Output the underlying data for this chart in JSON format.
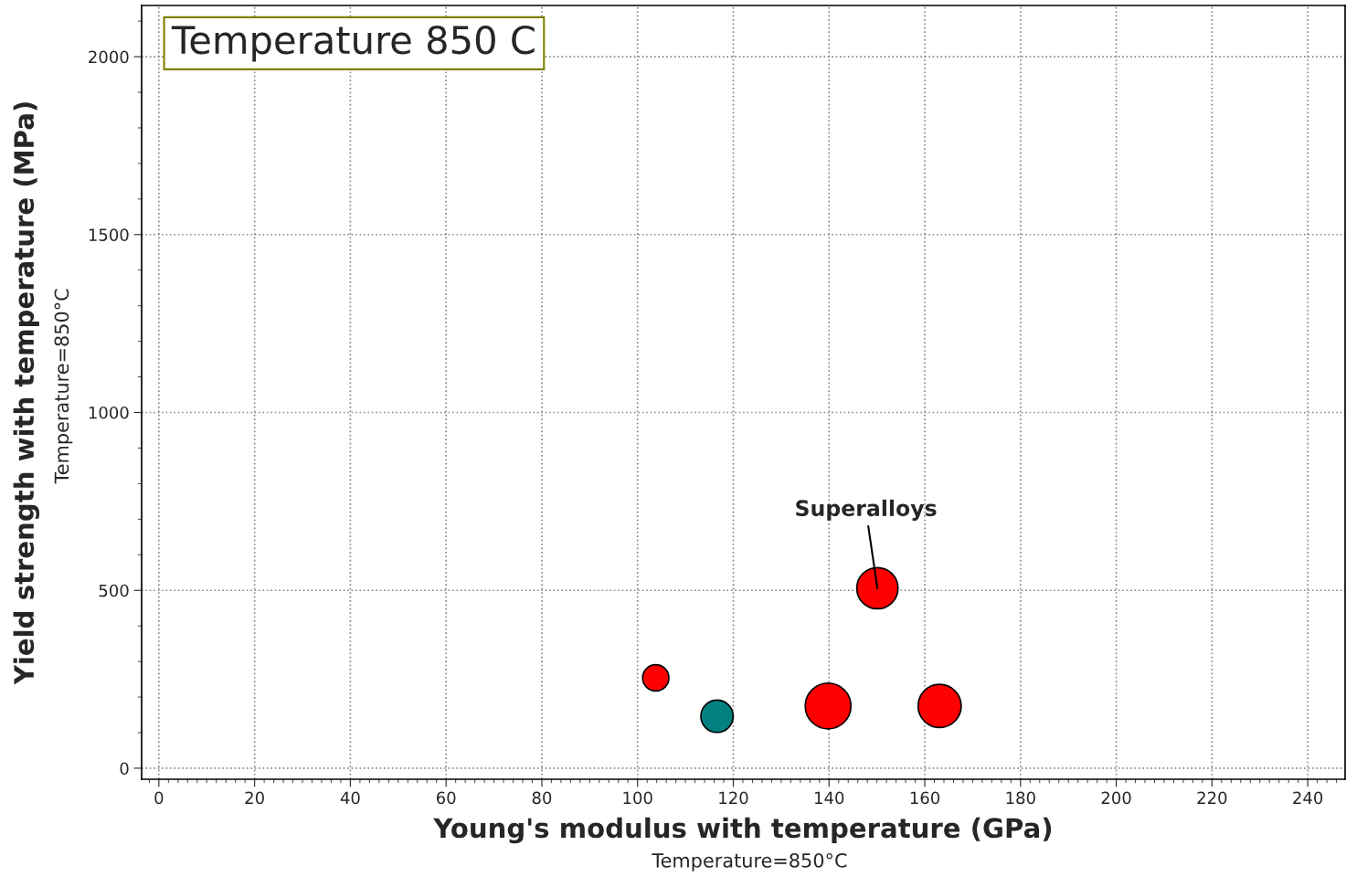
{
  "chart_data": {
    "type": "bubble",
    "title": "Temperature 850 C",
    "xlabel": "Young's modulus with temperature (GPa)",
    "ylabel": "Yield strength with temperature (MPa)",
    "annotations": [
      "Temperature=850°C",
      "Temperature=850°C",
      {
        "text": "Superalloys",
        "x": 150.1,
        "y": 506
      }
    ],
    "series": [
      {
        "color": "#ff0000",
        "x": [
          103.8,
          139.8,
          163.1,
          150.1
        ],
        "values": [
          254,
          175,
          175,
          506
        ],
        "sizes": [
          0.33,
          1,
          0.89,
          0.81
        ]
      },
      {
        "color": "#008080",
        "x": [
          116.6
        ],
        "values": [
          146
        ],
        "sizes": [
          0.5
        ]
      }
    ],
    "xlim": [
      -3.6,
      247.8
    ],
    "ylim": [
      -31,
      2144
    ],
    "xticks": [
      0,
      20,
      40,
      60,
      80,
      100,
      120,
      140,
      160,
      180,
      200,
      220,
      240
    ],
    "yticks": [
      0,
      500,
      1000,
      1500,
      2000
    ],
    "grid": true
  }
}
